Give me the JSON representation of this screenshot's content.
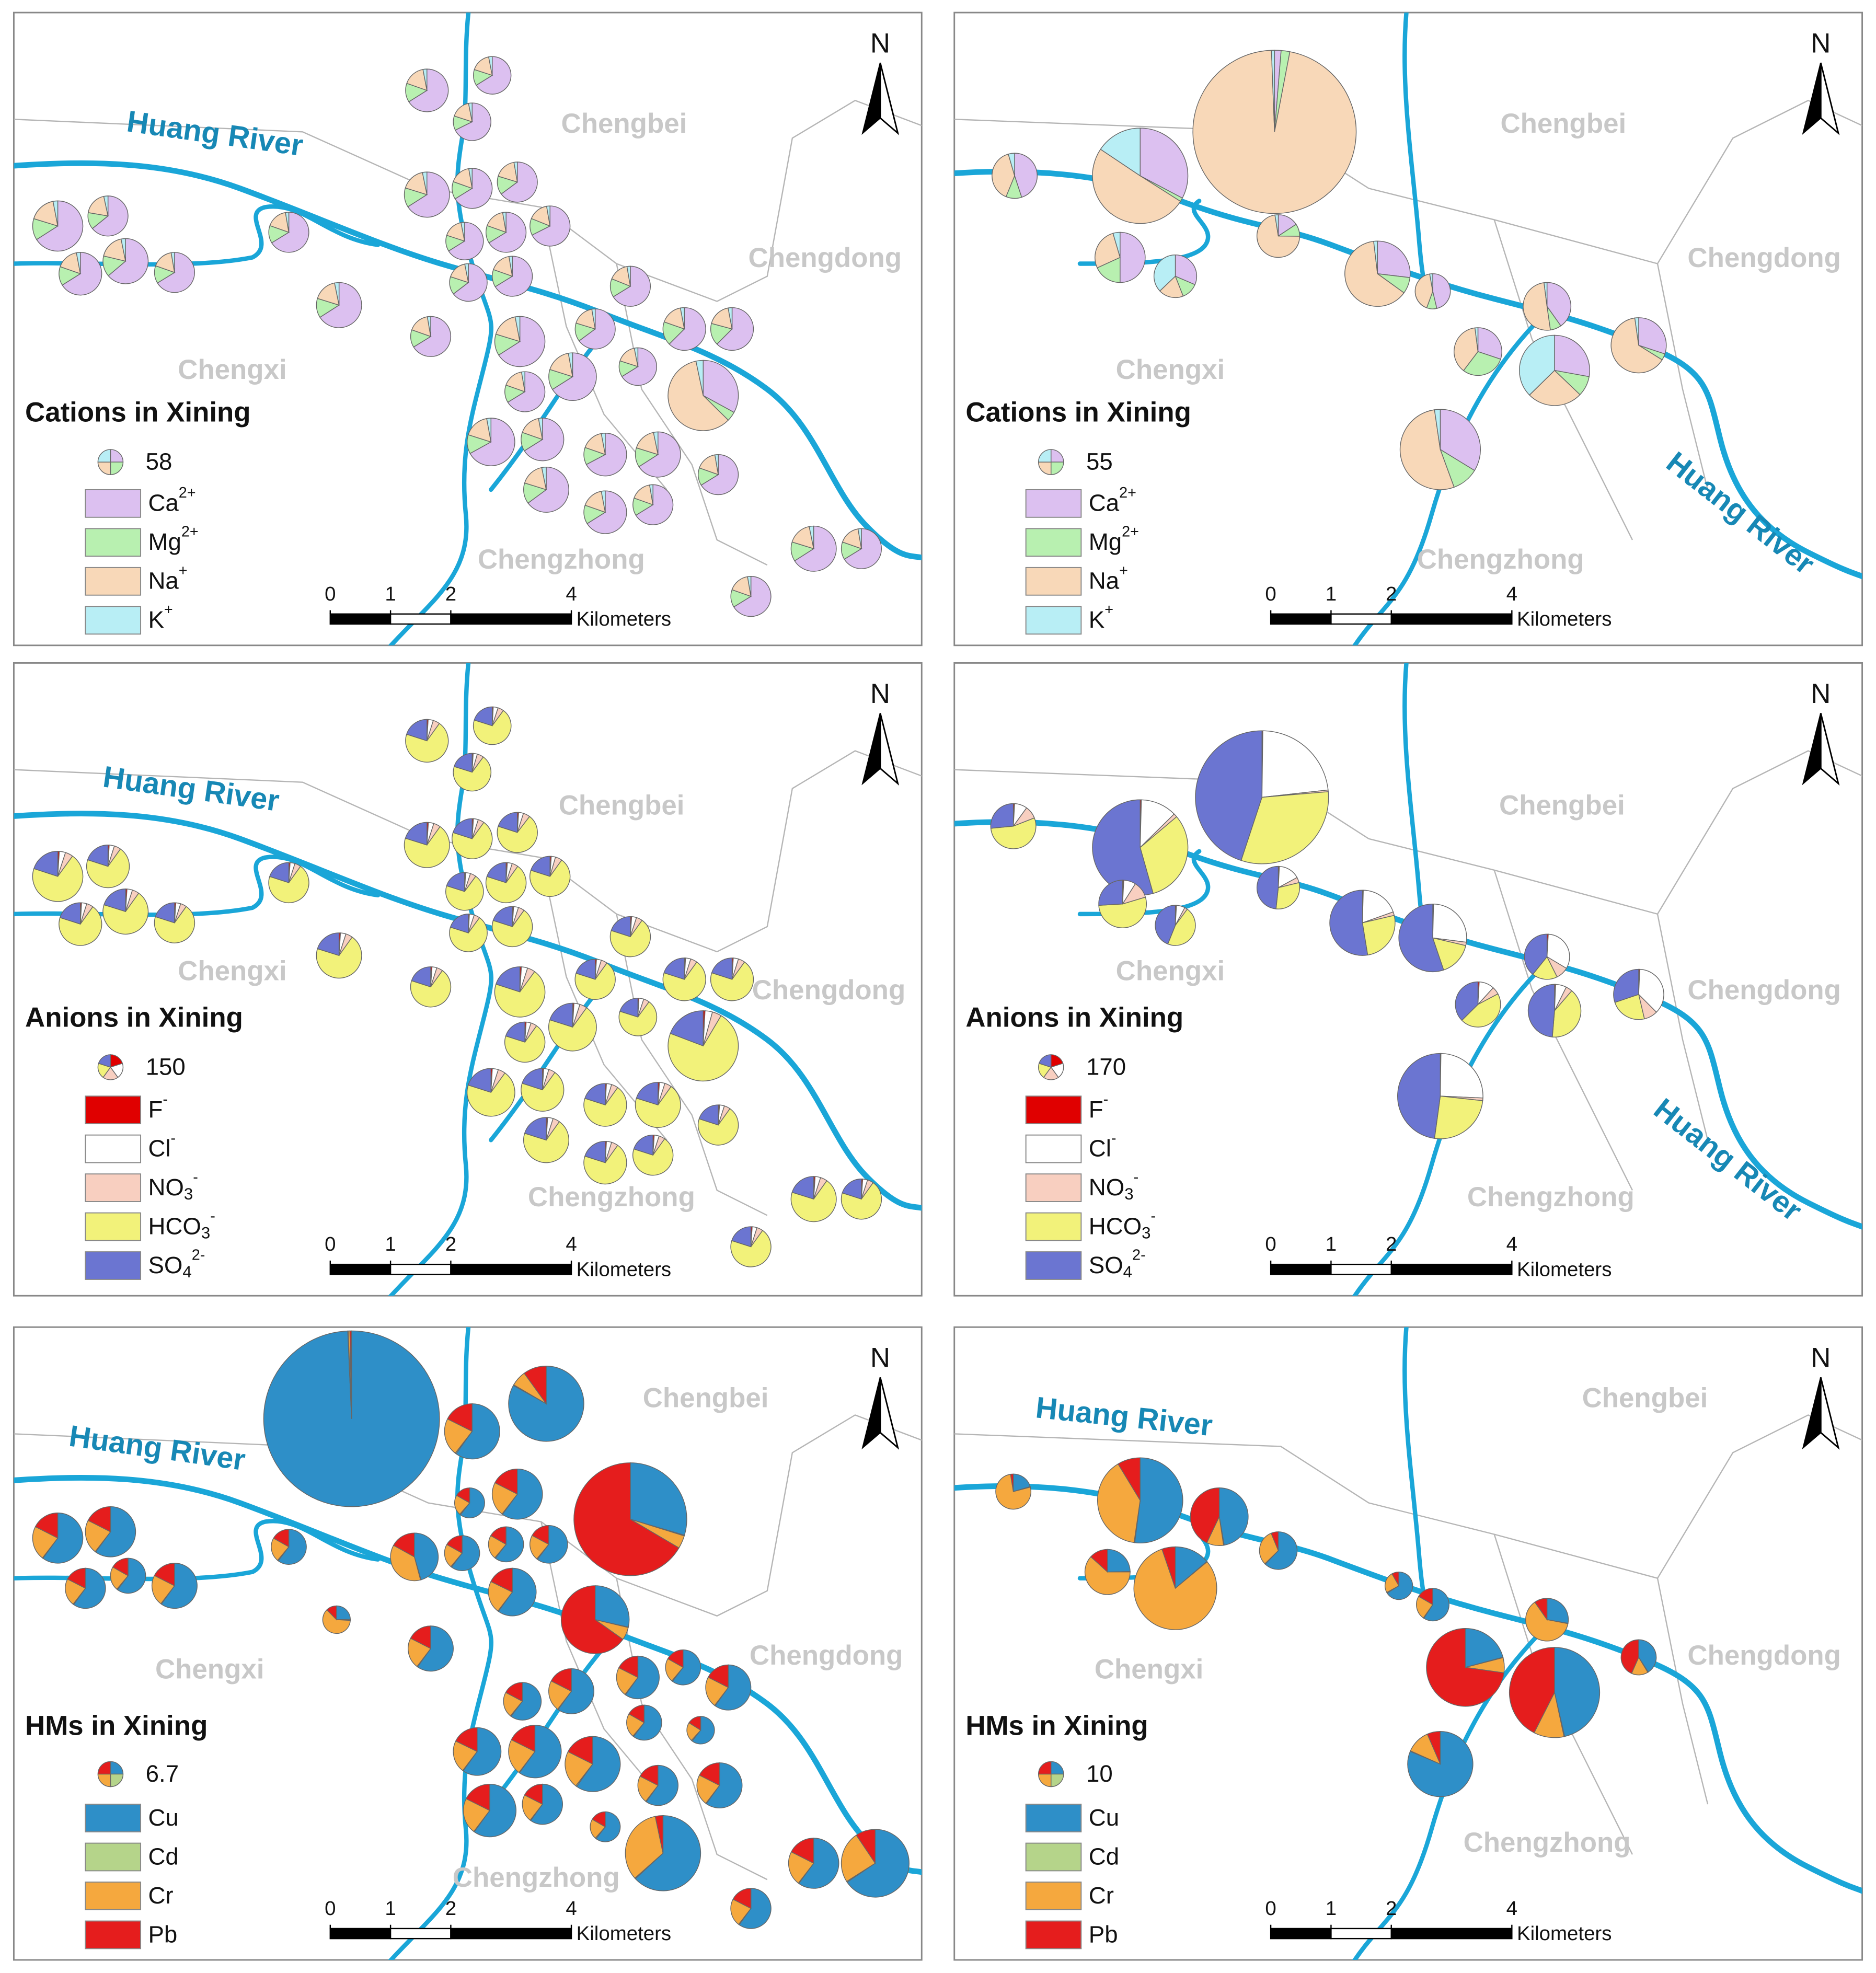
{
  "panels": [
    {
      "title": "Cations in Xining",
      "legend": {
        "value": 58,
        "items": [
          {
            "base": "Ca",
            "sup": "2+",
            "color": "#dcc0f0"
          },
          {
            "base": "Mg",
            "sup": "2+",
            "color": "#b8f0b0"
          },
          {
            "base": "Na",
            "sup": "+",
            "color": "#f8d8b8"
          },
          {
            "base": "K",
            "sup": "+",
            "color": "#b8eef5"
          }
        ]
      },
      "districts": [
        "Chengbei",
        "Chengdong",
        "Chengxi",
        "Chengzhong"
      ],
      "river": "Huang River",
      "north": "N",
      "scale_bar": {
        "ticks": [
          0,
          1,
          2,
          4
        ],
        "unit": "Kilometers"
      },
      "sites": [
        [
          111,
          24,
          28,
          5
        ],
        [
          86,
          18,
          22,
          4
        ],
        [
          88,
          16,
          22,
          4
        ],
        [
          124,
          26,
          32,
          6
        ],
        [
          98,
          21,
          25,
          4
        ],
        [
          96,
          22,
          26,
          4
        ],
        [
          153,
          32,
          40,
          7
        ],
        [
          95,
          20,
          28,
          5
        ],
        [
          98,
          21,
          25,
          4
        ],
        [
          86,
          18,
          22,
          4
        ],
        [
          98,
          21,
          25,
          4
        ],
        [
          100,
          20,
          24,
          4
        ],
        [
          111,
          24,
          28,
          5
        ],
        [
          120,
          28,
          34,
          6
        ],
        [
          98,
          21,
          25,
          4
        ],
        [
          84,
          20,
          22,
          4
        ],
        [
          98,
          21,
          25,
          4
        ],
        [
          98,
          22,
          24,
          4
        ],
        [
          124,
          26,
          32,
          6
        ],
        [
          98,
          21,
          25,
          4
        ],
        [
          153,
          32,
          40,
          7
        ],
        [
          96,
          22,
          26,
          4
        ],
        [
          105,
          30,
          28,
          5
        ],
        [
          105,
          28,
          30,
          5
        ],
        [
          86,
          18,
          22,
          4
        ],
        [
          150,
          20,
          270,
          15
        ],
        [
          98,
          21,
          25,
          4
        ],
        [
          138,
          29,
          36,
          6
        ],
        [
          140,
          27,
          36,
          6
        ],
        [
          111,
          24,
          28,
          5
        ],
        [
          113,
          22,
          28,
          5
        ],
        [
          124,
          26,
          32,
          6
        ],
        [
          98,
          21,
          25,
          4
        ],
        [
          122,
          28,
          32,
          6
        ],
        [
          111,
          24,
          28,
          5
        ],
        [
          98,
          21,
          25,
          4
        ],
        [
          124,
          26,
          32,
          6
        ],
        [
          98,
          21,
          25,
          4
        ],
        [
          98,
          21,
          25,
          4
        ]
      ]
    },
    {
      "title": "Cations in Xining",
      "legend": {
        "value": 55,
        "items": [
          {
            "base": "Ca",
            "sup": "2+",
            "color": "#dcc0f0"
          },
          {
            "base": "Mg",
            "sup": "2+",
            "color": "#b8f0b0"
          },
          {
            "base": "Na",
            "sup": "+",
            "color": "#f8d8b8"
          },
          {
            "base": "K",
            "sup": "+",
            "color": "#b8eef5"
          }
        ]
      },
      "districts": [
        "Chengbei",
        "Chengdong",
        "Chengxi",
        "Chengzhong"
      ],
      "river": "Huang River",
      "north": "N",
      "scale_bar": {
        "ticks": [
          0,
          1,
          2,
          4
        ],
        "unit": "Kilometers"
      },
      "sites": [
        [
          30,
          40,
          2240,
          14
        ],
        [
          260,
          10,
          400,
          124
        ],
        [
          80,
          20,
          70,
          8
        ],
        [
          110,
          40,
          60,
          10
        ],
        [
          50,
          20,
          30,
          59
        ],
        [
          25,
          15,
          115,
          4
        ],
        [
          100,
          30,
          235,
          7
        ],
        [
          50,
          10,
          45,
          3
        ],
        [
          80,
          15,
          100,
          4
        ],
        [
          60,
          60,
          75,
          4
        ],
        [
          120,
          40,
          110,
          161
        ],
        [
          80,
          10,
          170,
          6
        ],
        [
          190,
          60,
          300,
          13
        ]
      ]
    },
    {
      "title": "Anions in Xining",
      "legend": {
        "value": 150,
        "items": [
          {
            "base": "F",
            "sup": "-",
            "color": "#e00000"
          },
          {
            "base": "Cl",
            "sup": "-",
            "color": "#ffffff"
          },
          {
            "base": "NO",
            "sub": "3",
            "sup": "-",
            "color": "#f8cfc0"
          },
          {
            "base": "HCO",
            "sub": "3",
            "sup": "-",
            "color": "#f2f27a"
          },
          {
            "base": "SO",
            "sub": "4",
            "sup": "2-",
            "color": "#6b75d1"
          }
        ]
      },
      "districts": [
        "Chengbei",
        "Chengdong",
        "Chengxi",
        "Chengzhong"
      ],
      "river": "Huang River",
      "north": "N",
      "scale_bar": {
        "ticks": [
          0,
          1,
          2,
          4
        ],
        "unit": "Kilometers"
      },
      "sites": [
        [
          4,
          17,
          22,
          304,
          87
        ],
        [
          3,
          14,
          17,
          236,
          68
        ],
        [
          3,
          12,
          19,
          236,
          68
        ],
        [
          5,
          19,
          24,
          340,
          98
        ],
        [
          4,
          15,
          19,
          269,
          77
        ],
        [
          4,
          15,
          21,
          267,
          77
        ],
        [
          6,
          24,
          30,
          420,
          120
        ],
        [
          4,
          17,
          22,
          304,
          87
        ],
        [
          4,
          15,
          19,
          269,
          77
        ],
        [
          3,
          14,
          17,
          236,
          68
        ],
        [
          4,
          15,
          19,
          269,
          77
        ],
        [
          4,
          13,
          21,
          269,
          77
        ],
        [
          4,
          17,
          22,
          304,
          87
        ],
        [
          5,
          19,
          24,
          340,
          98
        ],
        [
          4,
          15,
          19,
          269,
          77
        ],
        [
          3,
          14,
          17,
          236,
          68
        ],
        [
          4,
          15,
          19,
          269,
          77
        ],
        [
          4,
          15,
          19,
          269,
          77
        ],
        [
          5,
          19,
          24,
          340,
          98
        ],
        [
          4,
          15,
          19,
          269,
          77
        ],
        [
          6,
          24,
          30,
          420,
          120
        ],
        [
          4,
          15,
          19,
          269,
          77
        ],
        [
          4,
          17,
          22,
          304,
          87
        ],
        [
          4,
          17,
          22,
          304,
          87
        ],
        [
          3,
          14,
          17,
          236,
          68
        ],
        [
          10,
          40,
          50,
          850,
          226
        ],
        [
          4,
          15,
          19,
          269,
          77
        ],
        [
          5,
          22,
          27,
          379,
          109
        ],
        [
          5,
          22,
          27,
          379,
          109
        ],
        [
          4,
          17,
          22,
          304,
          87
        ],
        [
          4,
          17,
          22,
          304,
          87
        ],
        [
          5,
          19,
          24,
          340,
          98
        ],
        [
          4,
          15,
          19,
          269,
          77
        ],
        [
          5,
          19,
          24,
          340,
          98
        ],
        [
          4,
          17,
          22,
          304,
          87
        ],
        [
          4,
          15,
          19,
          269,
          77
        ],
        [
          5,
          19,
          24,
          340,
          98
        ],
        [
          4,
          15,
          19,
          269,
          77
        ],
        [
          4,
          15,
          19,
          269,
          77
        ]
      ]
    },
    {
      "title": "Anions in Xining",
      "legend": {
        "value": 170,
        "items": [
          {
            "base": "F",
            "sup": "-",
            "color": "#e00000"
          },
          {
            "base": "Cl",
            "sup": "-",
            "color": "#ffffff"
          },
          {
            "base": "NO",
            "sub": "3",
            "sup": "-",
            "color": "#f8cfc0"
          },
          {
            "base": "HCO",
            "sub": "3",
            "sup": "-",
            "color": "#f2f27a"
          },
          {
            "base": "SO",
            "sub": "4",
            "sup": "2-",
            "color": "#6b75d1"
          }
        ]
      },
      "districts": [
        "Chengbei",
        "Chengdong",
        "Chengxi",
        "Chengzhong"
      ],
      "river": "Huang River",
      "north": "N",
      "scale_bar": {
        "ticks": [
          0,
          1,
          2,
          4
        ],
        "unit": "Kilometers"
      },
      "sites": [
        [
          5,
          50,
          50,
          300,
          146
        ],
        [
          10,
          300,
          30,
          780,
          1335
        ],
        [
          10,
          1100,
          20,
          1500,
          2145
        ],
        [
          5,
          50,
          70,
          330,
          159
        ],
        [
          4,
          30,
          10,
          200,
          191
        ],
        [
          4,
          80,
          20,
          150,
          237
        ],
        [
          5,
          220,
          20,
          300,
          604
        ],
        [
          5,
          330,
          20,
          200,
          684
        ],
        [
          5,
          180,
          50,
          100,
          216
        ],
        [
          5,
          60,
          30,
          250,
          206
        ],
        [
          5,
          50,
          30,
          300,
          365
        ],
        [
          5,
          250,
          60,
          160,
          205
        ],
        [
          5,
          500,
          20,
          500,
          940
        ]
      ]
    },
    {
      "title": "HMs in Xining",
      "legend": {
        "value": 6.7,
        "items": [
          {
            "base": "Cu",
            "color": "#2e8fc8"
          },
          {
            "base": "Cd",
            "color": "#b5d48a"
          },
          {
            "base": "Cr",
            "color": "#f5a83e"
          },
          {
            "base": "Pb",
            "color": "#e51d1d"
          }
        ]
      },
      "districts": [
        "Chengbei",
        "Chengdong",
        "Chengxi",
        "Chengzhong"
      ],
      "river": "Huang River",
      "north": "N",
      "scale_bar": {
        "ticks": [
          0,
          1,
          2,
          4
        ],
        "unit": "Kilometers"
      },
      "sites": [
        [
          326,
          0.3,
          1,
          1
        ],
        [
          50,
          0.2,
          4,
          6
        ],
        [
          19.4,
          0.2,
          7.1,
          5.7
        ],
        [
          16.1,
          0.1,
          5.9,
          4.7
        ],
        [
          5.8,
          0.1,
          2.1,
          1.6
        ],
        [
          40,
          0.3,
          5,
          90
        ],
        [
          16.1,
          0.1,
          5.9,
          4.7
        ],
        [
          16.1,
          0.1,
          5.9,
          4.7
        ],
        [
          7.9,
          0.1,
          2.9,
          2.2
        ],
        [
          11,
          0.1,
          9,
          4.1
        ],
        [
          7.9,
          0.1,
          2.9,
          2.2
        ],
        [
          7.9,
          0.1,
          2.9,
          2.2
        ],
        [
          9.1,
          0.1,
          3.3,
          2.6
        ],
        [
          10.3,
          0.1,
          3.8,
          3
        ],
        [
          7.9,
          0.1,
          2.9,
          2.2
        ],
        [
          13,
          0.1,
          4.8,
          3.8
        ],
        [
          14.5,
          0.1,
          5.3,
          4.3
        ],
        [
          14,
          0.1,
          3,
          32
        ],
        [
          2,
          0.1,
          5,
          1
        ],
        [
          13,
          0.1,
          4.8,
          3.8
        ],
        [
          9.1,
          0.1,
          3.3,
          2.6
        ],
        [
          13,
          0.1,
          4.8,
          3.8
        ],
        [
          11.6,
          0.1,
          4.3,
          3.4
        ],
        [
          7.9,
          0.1,
          2.9,
          2.2
        ],
        [
          13,
          0.1,
          4.8,
          3.8
        ],
        [
          7.9,
          0.1,
          2.9,
          2.2
        ],
        [
          4.9,
          0.1,
          1.8,
          1.3
        ],
        [
          14.5,
          0.1,
          5.3,
          4.3
        ],
        [
          17.7,
          0.1,
          6.5,
          5.2
        ],
        [
          19.4,
          0.2,
          7.1,
          5.7
        ],
        [
          10.3,
          0.1,
          3.8,
          3
        ],
        [
          13,
          0.1,
          4.8,
          3.8
        ],
        [
          17.7,
          0.1,
          6.5,
          5.2
        ],
        [
          10.3,
          0.1,
          3.8,
          3
        ],
        [
          5.8,
          0.1,
          2.1,
          1.6
        ],
        [
          38,
          0.2,
          20,
          2
        ],
        [
          16.1,
          0.1,
          5.9,
          4.7
        ],
        [
          32,
          0.2,
          12,
          4.6
        ],
        [
          10.3,
          0.1,
          3.8,
          3
        ]
      ]
    },
    {
      "title": "HMs in Xining",
      "legend": {
        "value": 10,
        "items": [
          {
            "base": "Cu",
            "color": "#2e8fc8"
          },
          {
            "base": "Cd",
            "color": "#b5d48a"
          },
          {
            "base": "Cr",
            "color": "#f5a83e"
          },
          {
            "base": "Pb",
            "color": "#e51d1d"
          }
        ]
      },
      "districts": [
        "Chengbei",
        "Chengdong",
        "Chengxi",
        "Chengzhong"
      ],
      "river": "Huang River",
      "north": "N",
      "scale_bar": {
        "ticks": [
          0,
          1,
          2,
          4
        ],
        "unit": "Kilometers"
      },
      "sites": [
        [
          4,
          0.1,
          15,
          0.5
        ],
        [
          60,
          0.3,
          45,
          10
        ],
        [
          25,
          0.2,
          5,
          22.7
        ],
        [
          8,
          0.1,
          20,
          4.3
        ],
        [
          15,
          0.2,
          88,
          5.7
        ],
        [
          14,
          0.1,
          7,
          1.4
        ],
        [
          8,
          0.1,
          3,
          1
        ],
        [
          10,
          0.1,
          4,
          2.8
        ],
        [
          8,
          0.1,
          18,
          2.8
        ],
        [
          20,
          0.2,
          6,
          70
        ],
        [
          60,
          0.3,
          14,
          55
        ],
        [
          8,
          0.1,
          3,
          8.5
        ],
        [
          55,
          0.2,
          8,
          4.4
        ]
      ]
    }
  ]
}
